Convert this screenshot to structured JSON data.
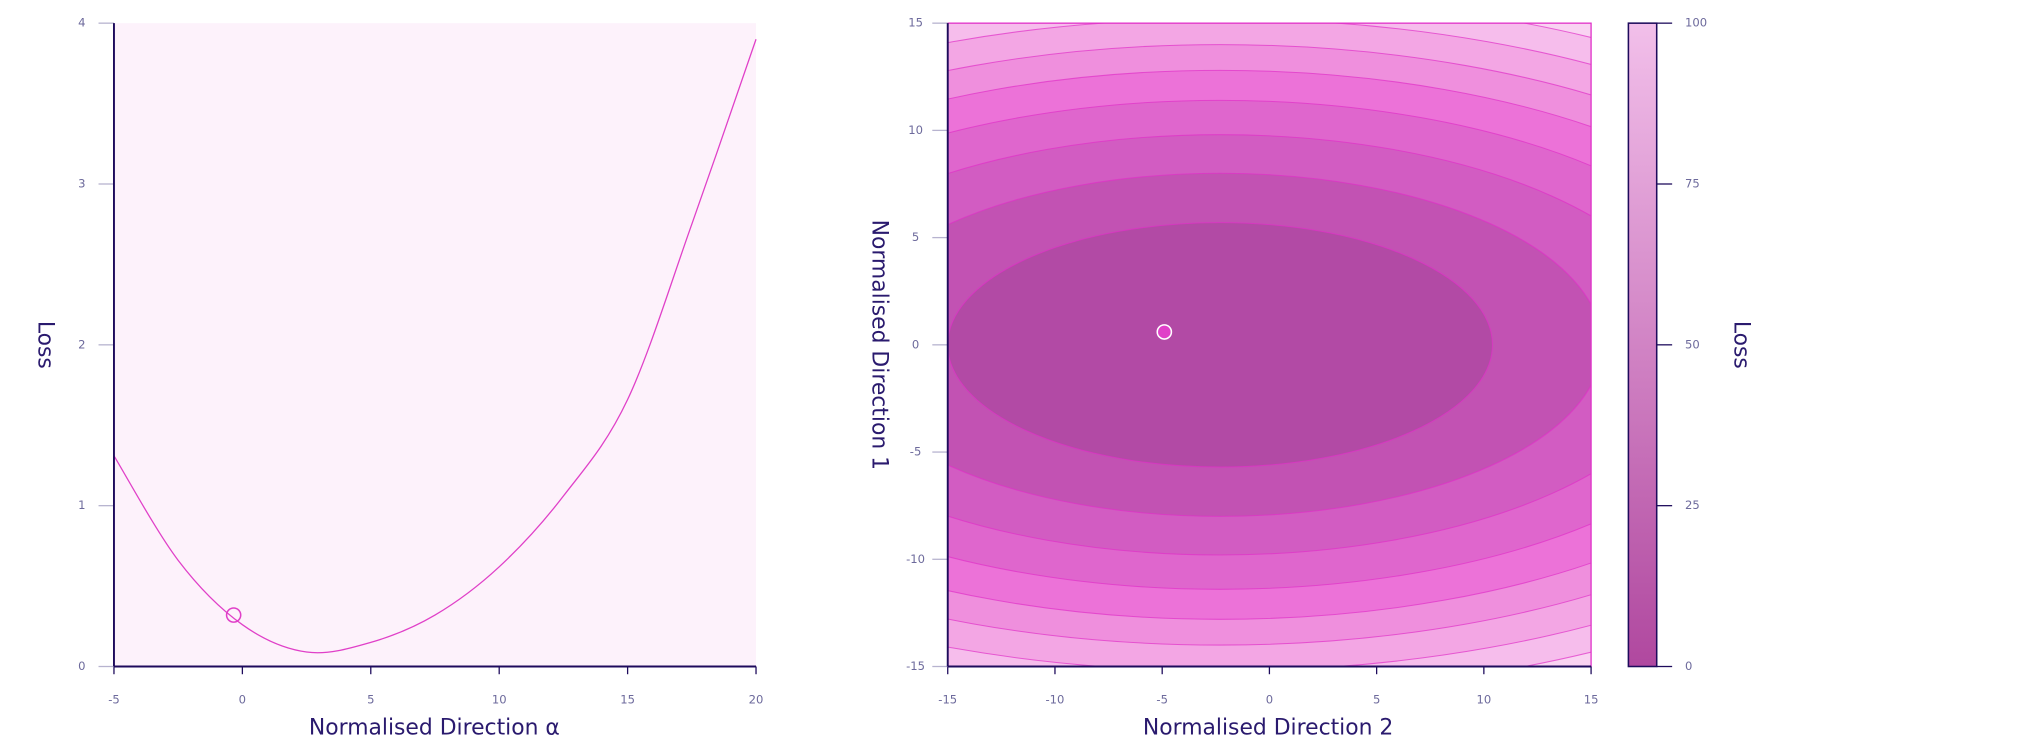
{
  "chart_data": [
    {
      "type": "line",
      "xlabel": "Normalised Direction α",
      "ylabel": "Loss",
      "x": [
        -5,
        -2.5,
        0,
        2.5,
        5,
        7.5,
        10,
        12.5,
        15,
        17.5,
        20
      ],
      "series": [
        {
          "color": "#e040c8",
          "values": [
            1.31,
            0.66,
            0.26,
            0.09,
            0.15,
            0.32,
            0.62,
            1.06,
            1.66,
            2.75,
            3.9
          ]
        }
      ],
      "marker": {
        "x": -0.34,
        "y": 0.32,
        "color": "#e040c8"
      },
      "background_color": "#fdf2fb",
      "xlim": [
        -5,
        20
      ],
      "xticks": [
        -5,
        0,
        5,
        10,
        15,
        20
      ],
      "ylim": [
        0,
        4
      ],
      "yticks": [
        0,
        1,
        2,
        3,
        4
      ]
    },
    {
      "type": "contour",
      "xlabel": "Normalised Direction 2",
      "ylabel": "Normalised Direction 1",
      "center": [
        -2.3,
        0
      ],
      "background_color": "#f9d3f2",
      "contours": [
        {
          "level": 80,
          "rx": 36.3,
          "ry": 16.3,
          "color": "#f6bdec"
        },
        {
          "level": 70,
          "rx": 33.9,
          "ry": 15.2,
          "color": "#f3a6e4"
        },
        {
          "level": 60,
          "rx": 31.2,
          "ry": 14,
          "color": "#ef8fdd"
        },
        {
          "level": 50,
          "rx": 28.5,
          "ry": 12.8,
          "color": "#ec72d8"
        },
        {
          "level": 40,
          "rx": 25.4,
          "ry": 11.4,
          "color": "#df66cd"
        },
        {
          "level": 30,
          "rx": 21.9,
          "ry": 9.8,
          "color": "#d25cc2"
        },
        {
          "level": 20,
          "rx": 17.8,
          "ry": 8,
          "color": "#c252b3"
        },
        {
          "level": 10,
          "rx": 12.7,
          "ry": 5.7,
          "color": "#b24aa5"
        }
      ],
      "contour_line_color": "#e030c8",
      "marker": {
        "x": -4.9,
        "y": 0.6,
        "color": "#e040c8"
      },
      "xlim": [
        -15,
        15
      ],
      "xticks": [
        -15,
        -10,
        -5,
        0,
        5,
        10,
        15
      ],
      "ylim": [
        -15,
        15
      ],
      "yticks": [
        -15,
        -10,
        -5,
        0,
        5,
        10,
        15
      ],
      "colorbar": {
        "label": "Loss",
        "lim": [
          0,
          100
        ],
        "ticks": [
          0,
          25,
          50,
          75,
          100
        ],
        "colors": [
          "#b0489f",
          "#f2bfea"
        ]
      }
    }
  ]
}
